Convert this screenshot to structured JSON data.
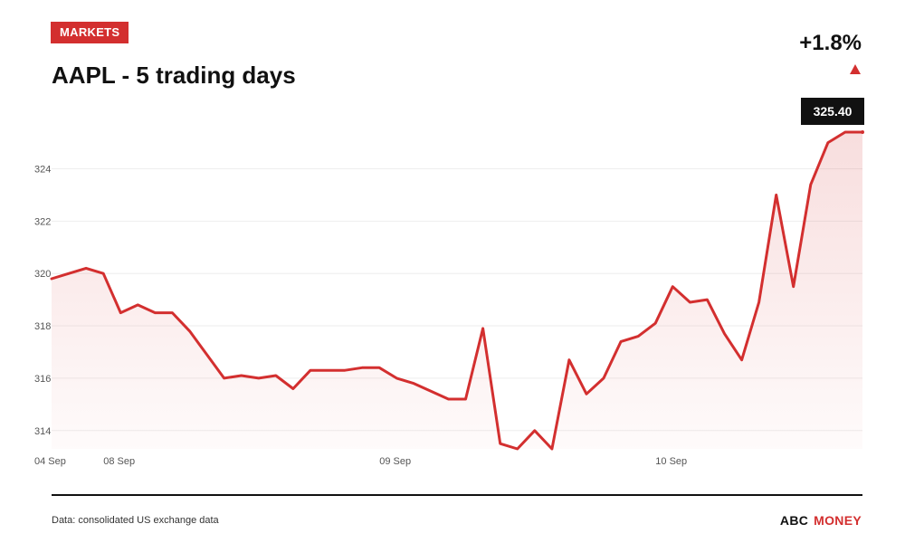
{
  "header": {
    "badge": "MARKETS",
    "title": "AAPL - 5 trading days",
    "change": "+1.8%"
  },
  "footer": {
    "source": "Data: consolidated US exchange data",
    "brand_left": "ABC",
    "brand_right": "MONEY"
  },
  "colors": {
    "accent": "#d32f2f",
    "text": "#111111",
    "grid": "#eeeeee"
  },
  "icons": {
    "change_direction": "up-triangle-icon"
  },
  "chart_data": {
    "type": "area",
    "title": "AAPL - 5 trading days",
    "xlabel": "",
    "ylabel": "",
    "ylim": [
      313.3,
      325.4
    ],
    "yticks": [
      314,
      316,
      318,
      320,
      322,
      324
    ],
    "grid": true,
    "x_tick_labels": [
      {
        "label": "04 Sep",
        "index": 0
      },
      {
        "label": "08 Sep",
        "index": 4
      },
      {
        "label": "09 Sep",
        "index": 20
      },
      {
        "label": "10 Sep",
        "index": 36
      }
    ],
    "last_value_label": "325.40",
    "series": [
      {
        "values": [
          319.8,
          320.0,
          320.2,
          320.0,
          318.5,
          318.8,
          318.5,
          318.5,
          317.8,
          316.9,
          316.0,
          316.1,
          316.0,
          316.1,
          315.6,
          316.3,
          316.3,
          316.3,
          316.4,
          316.4,
          316.0,
          315.8,
          315.5,
          315.2,
          315.2,
          317.9,
          313.5,
          313.3,
          314.0,
          313.3,
          316.7,
          315.4,
          316.0,
          317.4,
          317.6,
          318.1,
          319.5,
          318.9,
          319.0,
          317.7,
          316.7,
          318.9,
          323.0,
          319.5,
          323.4,
          325.0,
          325.4,
          325.4
        ]
      }
    ]
  }
}
